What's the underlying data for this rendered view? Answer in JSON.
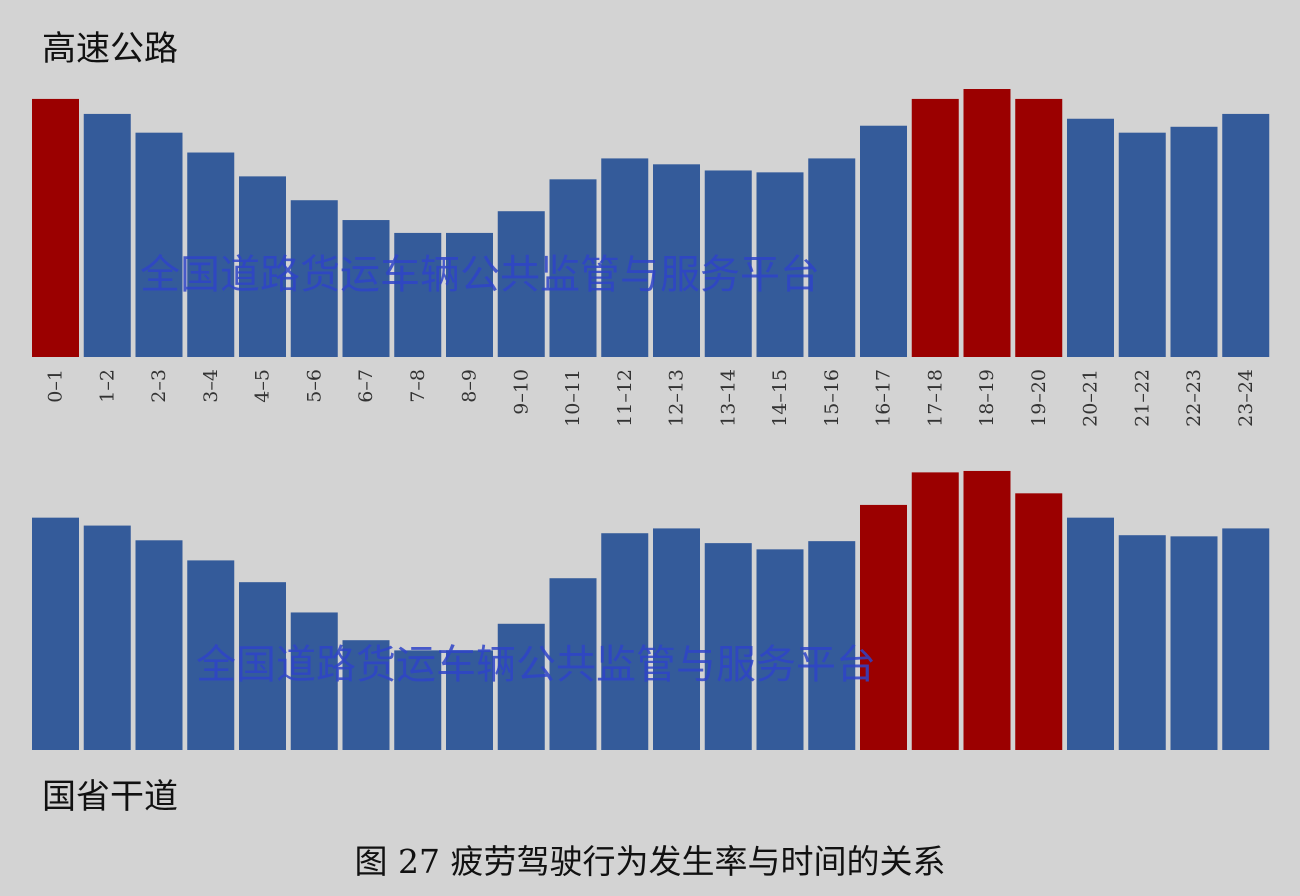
{
  "colors": {
    "background": "#d3d3d3",
    "normal": "#345b9a",
    "peak": "#9b0000",
    "watermark": "#2f44c8"
  },
  "watermark_text": "全国道路货运车辆公共监管与服务平台",
  "caption": "图 27 疲劳驾驶行为发生率与时间的关系",
  "chart_data": [
    {
      "type": "bar",
      "title": "高速公路",
      "categories": [
        "0–1",
        "1–2",
        "2–3",
        "3–4",
        "4–5",
        "5–6",
        "6–7",
        "7–8",
        "8–9",
        "9–10",
        "10–11",
        "11–12",
        "12–13",
        "13–14",
        "14–15",
        "15–16",
        "16–17",
        "17–18",
        "18–19",
        "19–20",
        "20–21",
        "21–22",
        "22–23",
        "23–24"
      ],
      "values": [
        96.3,
        90.7,
        83.7,
        76.3,
        67.4,
        58.5,
        51.1,
        46.3,
        46.3,
        54.4,
        66.3,
        74.1,
        71.9,
        69.6,
        68.9,
        74.1,
        86.3,
        96.3,
        100,
        96.3,
        88.9,
        83.7,
        85.9,
        90.7
      ],
      "highlight": [
        true,
        false,
        false,
        false,
        false,
        false,
        false,
        false,
        false,
        false,
        false,
        false,
        false,
        false,
        false,
        false,
        false,
        true,
        true,
        true,
        false,
        false,
        false,
        false
      ],
      "ylim": [
        0,
        100
      ],
      "show_tick_labels": true
    },
    {
      "type": "bar",
      "title": "国省干道",
      "categories": [
        "0–1",
        "1–2",
        "2–3",
        "3–4",
        "4–5",
        "5–6",
        "6–7",
        "7–8",
        "8–9",
        "9–10",
        "10–11",
        "11–12",
        "12–13",
        "13–14",
        "14–15",
        "15–16",
        "16–17",
        "17–18",
        "18–19",
        "19–20",
        "20–21",
        "21–22",
        "22–23",
        "23–24"
      ],
      "values": [
        82.1,
        79.3,
        74.1,
        67.0,
        59.3,
        48.6,
        38.8,
        35.2,
        35.2,
        44.6,
        60.7,
        76.6,
        78.3,
        73.1,
        70.9,
        73.8,
        86.6,
        98.1,
        98.6,
        90.7,
        82.1,
        75.9,
        75.5,
        78.3
      ],
      "highlight": [
        false,
        false,
        false,
        false,
        false,
        false,
        false,
        false,
        false,
        false,
        false,
        false,
        false,
        false,
        false,
        false,
        true,
        true,
        true,
        true,
        false,
        false,
        false,
        false
      ],
      "ylim": [
        0,
        100
      ],
      "show_tick_labels": false
    }
  ]
}
